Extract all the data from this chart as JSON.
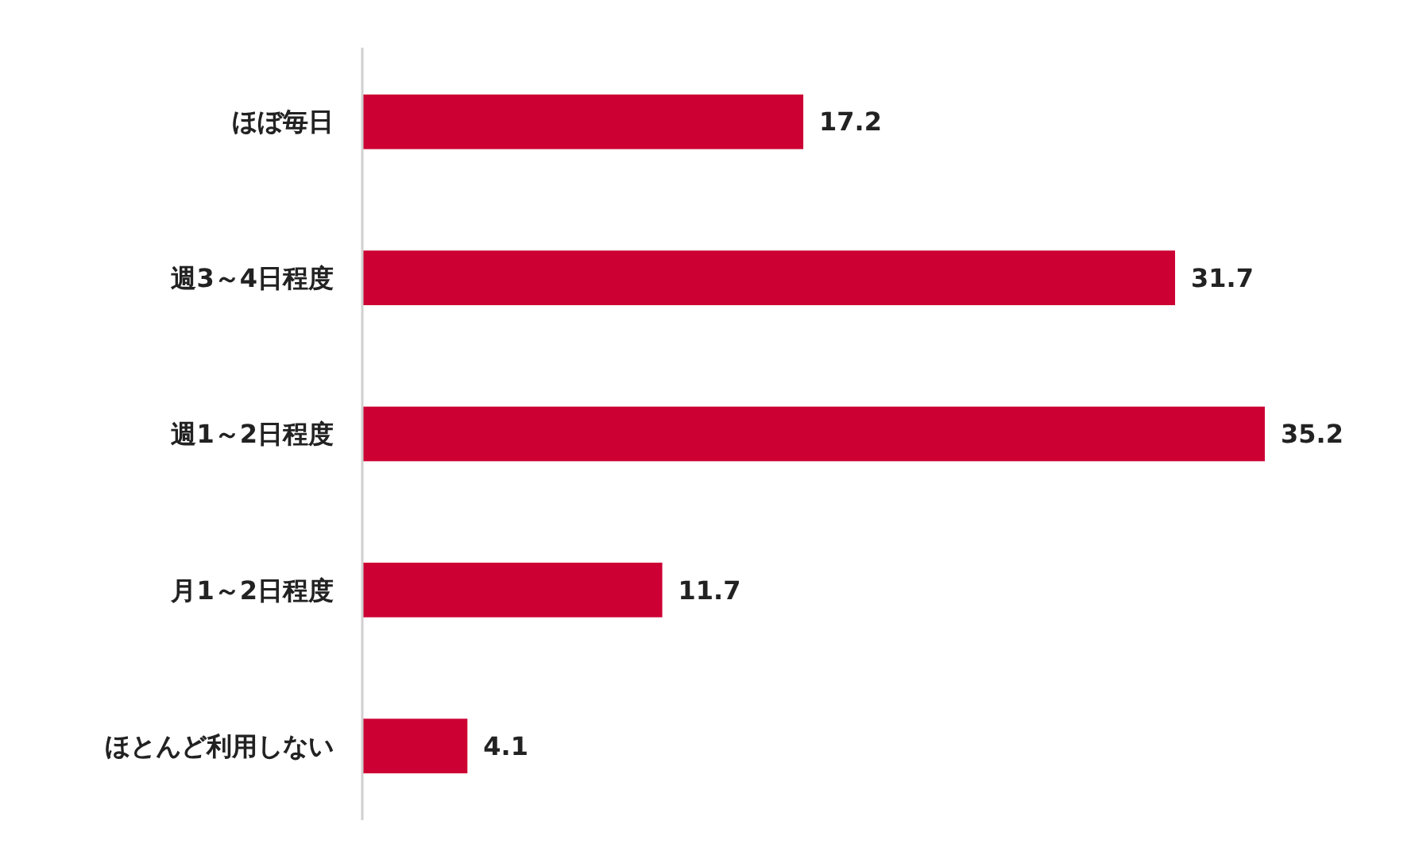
{
  "chart_data": {
    "type": "bar",
    "orientation": "horizontal",
    "categories": [
      "ほぼ毎日",
      "週3～4日程度",
      "週1～2日程度",
      "月1～2日程度",
      "ほとんど利用しない"
    ],
    "values": [
      17.2,
      31.7,
      35.2,
      11.7,
      4.1
    ],
    "color": "#cc0033",
    "data_labels": true
  }
}
